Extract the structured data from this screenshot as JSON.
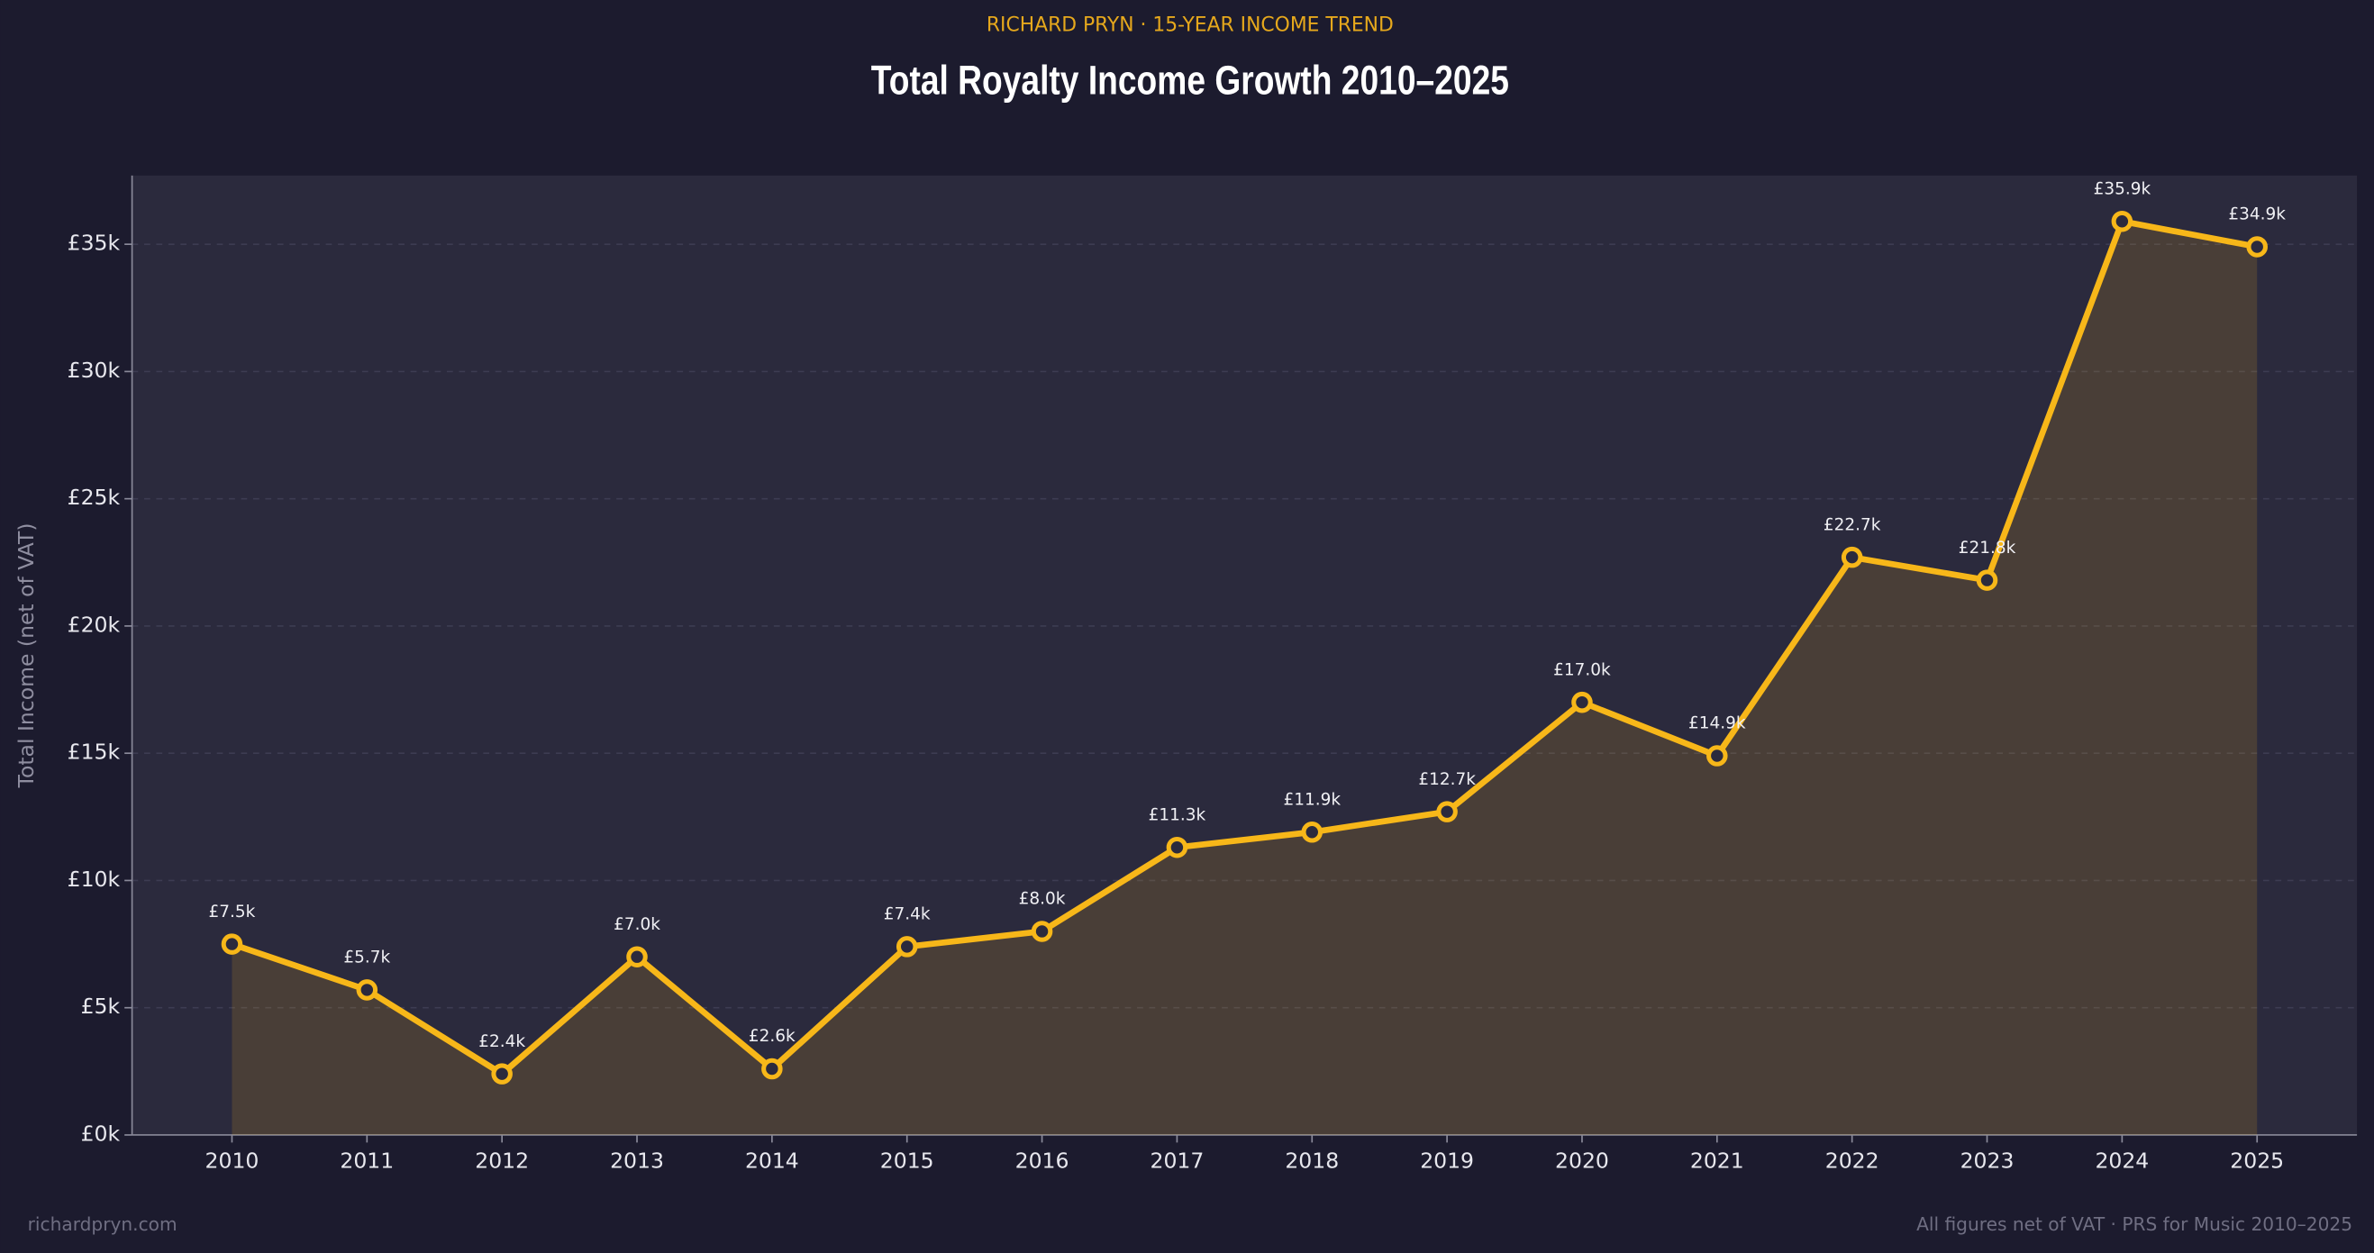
{
  "chart_data": {
    "type": "line",
    "subtitle": "RICHARD PRYN  ·  15-YEAR INCOME TREND",
    "title": "Total Royalty Income Growth  2010–2025",
    "y_label": "Total Income (net of VAT)",
    "footer_left": "richardpryn.com",
    "footer_right": "All figures net of VAT  ·  PRS for Music 2010–2025",
    "categories": [
      "2010",
      "2011",
      "2012",
      "2013",
      "2014",
      "2015",
      "2016",
      "2017",
      "2018",
      "2019",
      "2020",
      "2021",
      "2022",
      "2023",
      "2024",
      "2025"
    ],
    "values": [
      7500,
      5700,
      2400,
      7000,
      2600,
      7400,
      8000,
      11300,
      11900,
      12700,
      17000,
      14900,
      22700,
      21800,
      35900,
      34900
    ],
    "value_labels": [
      "£7.5k",
      "£5.7k",
      "£2.4k",
      "£7.0k",
      "£2.6k",
      "£7.4k",
      "£8.0k",
      "£11.3k",
      "£11.9k",
      "£12.7k",
      "£17.0k",
      "£14.9k",
      "£22.7k",
      "£21.8k",
      "£35.9k",
      "£34.9k"
    ],
    "color": "#f7b719",
    "ylim": [
      0,
      37700
    ],
    "yticks": [
      {
        "value": 0,
        "label": "£0k"
      },
      {
        "value": 5000,
        "label": "£5k"
      },
      {
        "value": 10000,
        "label": "£10k"
      },
      {
        "value": 15000,
        "label": "£15k"
      },
      {
        "value": 20000,
        "label": "£20k"
      },
      {
        "value": 25000,
        "label": "£25k"
      },
      {
        "value": 30000,
        "label": "£30k"
      },
      {
        "value": 35000,
        "label": "£35k"
      }
    ],
    "grid": true
  }
}
